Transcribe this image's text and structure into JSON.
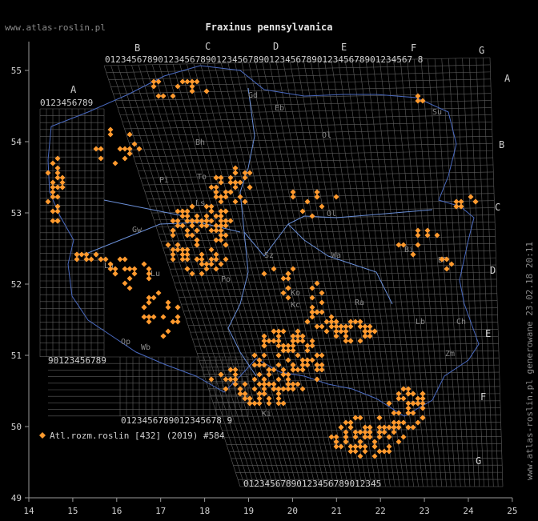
{
  "site": "www.atlas-roslin.pl",
  "title": "Fraxinus pennsylvanica",
  "footer_side": "www.atlas-roslin.pl generowane 23.02.18 20:11",
  "legend": {
    "label": "Atl.rozm.roslin [432] (2019) #584"
  },
  "colors": {
    "background": "#000000",
    "grid": "#7a7a7a",
    "marker": "#ff9a2e",
    "text": "#cccccc",
    "rivers": "#6a8fd8"
  },
  "axes": {
    "x_ticks": [
      "14",
      "15",
      "16",
      "17",
      "18",
      "19",
      "20",
      "21",
      "22",
      "23",
      "24",
      "25"
    ],
    "y_ticks": [
      "49",
      "50",
      "51",
      "52",
      "53",
      "54",
      "55"
    ],
    "x_range": [
      14,
      25
    ],
    "y_range": [
      49,
      55.5
    ]
  },
  "grid_letters": {
    "top": [
      "A",
      "B",
      "C",
      "D",
      "E",
      "F",
      "G"
    ],
    "right": [
      "A",
      "B",
      "C",
      "D",
      "E",
      "F",
      "G"
    ]
  },
  "digit_rows": {
    "top_a": "0123456789",
    "top_b": "0123456789012345678901234567890123456789012345678901234567 8",
    "left_bottom": "90123456789",
    "bottom_mid": "0123456789012345678 9",
    "bottom_main": "01234567890123456789012345"
  },
  "map_labels": [
    "Eb",
    "Ol",
    "Su",
    "Gd",
    "Bh",
    "Pi",
    "To",
    "Ol",
    "Sz",
    "Ls",
    "Gw",
    "Lu",
    "Po",
    "Ko",
    "Wa",
    "BP",
    "Bi",
    "Ra",
    "Lb",
    "Zm",
    "Ch",
    "Kc",
    "Ki",
    "Op",
    "Wb",
    "Lg"
  ],
  "marker_layer": {
    "name": "Atl.rozm.roslin",
    "count": 584
  }
}
